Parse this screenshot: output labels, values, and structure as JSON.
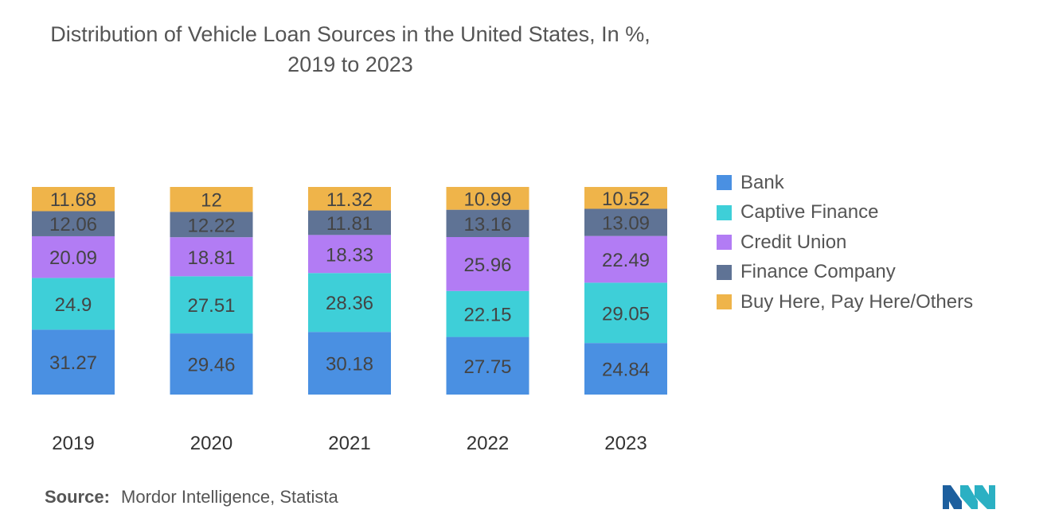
{
  "title": {
    "line1": "Distribution of Vehicle Loan Sources in the United States, In %,",
    "line2": "2019 to 2023"
  },
  "source": {
    "label": "Source:",
    "text": "Mordor Intelligence, Statista"
  },
  "logo": {
    "icon": "mordor-intelligence-logo-icon",
    "colors": [
      "#2bb0c3",
      "#1d5f9e"
    ]
  },
  "chart_data": {
    "type": "bar",
    "stacked": true,
    "title": "Distribution of Vehicle Loan Sources in the United States, In %, 2019 to 2023",
    "categories": [
      "2019",
      "2020",
      "2021",
      "2022",
      "2023"
    ],
    "series": [
      {
        "name": "Bank",
        "color": "#4a90e2",
        "values": [
          31.27,
          29.46,
          30.18,
          27.75,
          24.84
        ]
      },
      {
        "name": "Captive Finance",
        "color": "#3ecfd8",
        "values": [
          24.9,
          27.51,
          28.36,
          22.15,
          29.05
        ]
      },
      {
        "name": "Credit Union",
        "color": "#b27cf4",
        "values": [
          20.09,
          18.81,
          18.33,
          25.96,
          22.49
        ]
      },
      {
        "name": "Finance Company",
        "color": "#5f7395",
        "values": [
          12.06,
          12.22,
          11.81,
          13.16,
          13.09
        ]
      },
      {
        "name": "Buy Here, Pay Here/Others",
        "color": "#efb44a",
        "values": [
          11.68,
          12,
          11.32,
          10.99,
          10.52
        ]
      }
    ],
    "value_labels": [
      [
        "31.27",
        "29.46",
        "30.18",
        "27.75",
        "24.84"
      ],
      [
        "24.9",
        "27.51",
        "28.36",
        "22.15",
        "29.05"
      ],
      [
        "20.09",
        "18.81",
        "18.33",
        "25.96",
        "22.49"
      ],
      [
        "12.06",
        "12.22",
        "11.81",
        "13.16",
        "13.09"
      ],
      [
        "11.68",
        "12",
        "11.32",
        "10.99",
        "10.52"
      ]
    ],
    "ylim": [
      0,
      100
    ],
    "grid": false,
    "legend_position": "right"
  }
}
